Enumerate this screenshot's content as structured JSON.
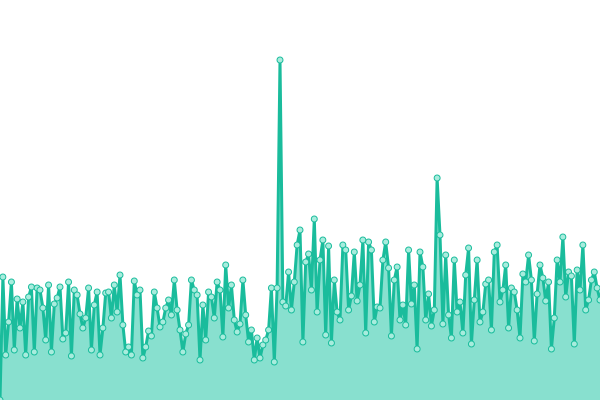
{
  "chart_data": {
    "type": "area",
    "title": "",
    "xlabel": "",
    "ylabel": "",
    "ylim": [
      0,
      400
    ],
    "grid": false,
    "colors": {
      "line": "#1abc9c",
      "fill": "#88e0cf",
      "point_fill": "#a8ecdd",
      "point_stroke": "#1abc9c"
    },
    "values": [
      0,
      123,
      45,
      78,
      118,
      50,
      101,
      72,
      98,
      45,
      103,
      113,
      48,
      112,
      110,
      92,
      60,
      115,
      48,
      96,
      102,
      113,
      61,
      67,
      118,
      44,
      110,
      105,
      86,
      72,
      82,
      112,
      50,
      95,
      108,
      45,
      72,
      107,
      108,
      82,
      115,
      88,
      125,
      75,
      48,
      53,
      45,
      119,
      105,
      110,
      42,
      53,
      69,
      64,
      108,
      92,
      73,
      78,
      92,
      100,
      85,
      120,
      90,
      70,
      48,
      66,
      75,
      120,
      110,
      105,
      40,
      95,
      60,
      108,
      103,
      82,
      118,
      110,
      63,
      135,
      92,
      115,
      80,
      68,
      76,
      120,
      85,
      58,
      70,
      40,
      62,
      42,
      55,
      60,
      70,
      112,
      38,
      112,
      340,
      98,
      94,
      128,
      90,
      118,
      155,
      170,
      58,
      138,
      146,
      110,
      181,
      88,
      140,
      160,
      65,
      154,
      57,
      120,
      88,
      80,
      155,
      150,
      90,
      104,
      148,
      99,
      115,
      160,
      67,
      158,
      150,
      78,
      93,
      92,
      140,
      158,
      132,
      64,
      120,
      133,
      80,
      95,
      75,
      150,
      96,
      115,
      51,
      148,
      133,
      80,
      106,
      74,
      90,
      222,
      165,
      76,
      145,
      85,
      62,
      140,
      88,
      98,
      67,
      125,
      152,
      56,
      100,
      140,
      78,
      88,
      116,
      120,
      70,
      148,
      155,
      98,
      110,
      135,
      72,
      112,
      108,
      90,
      62,
      126,
      118,
      145,
      120,
      59,
      106,
      135,
      122,
      99,
      118,
      51,
      82,
      140,
      118,
      163,
      103,
      128,
      124,
      56,
      130,
      110,
      155,
      90,
      100,
      120,
      128,
      112,
      100
    ]
  }
}
